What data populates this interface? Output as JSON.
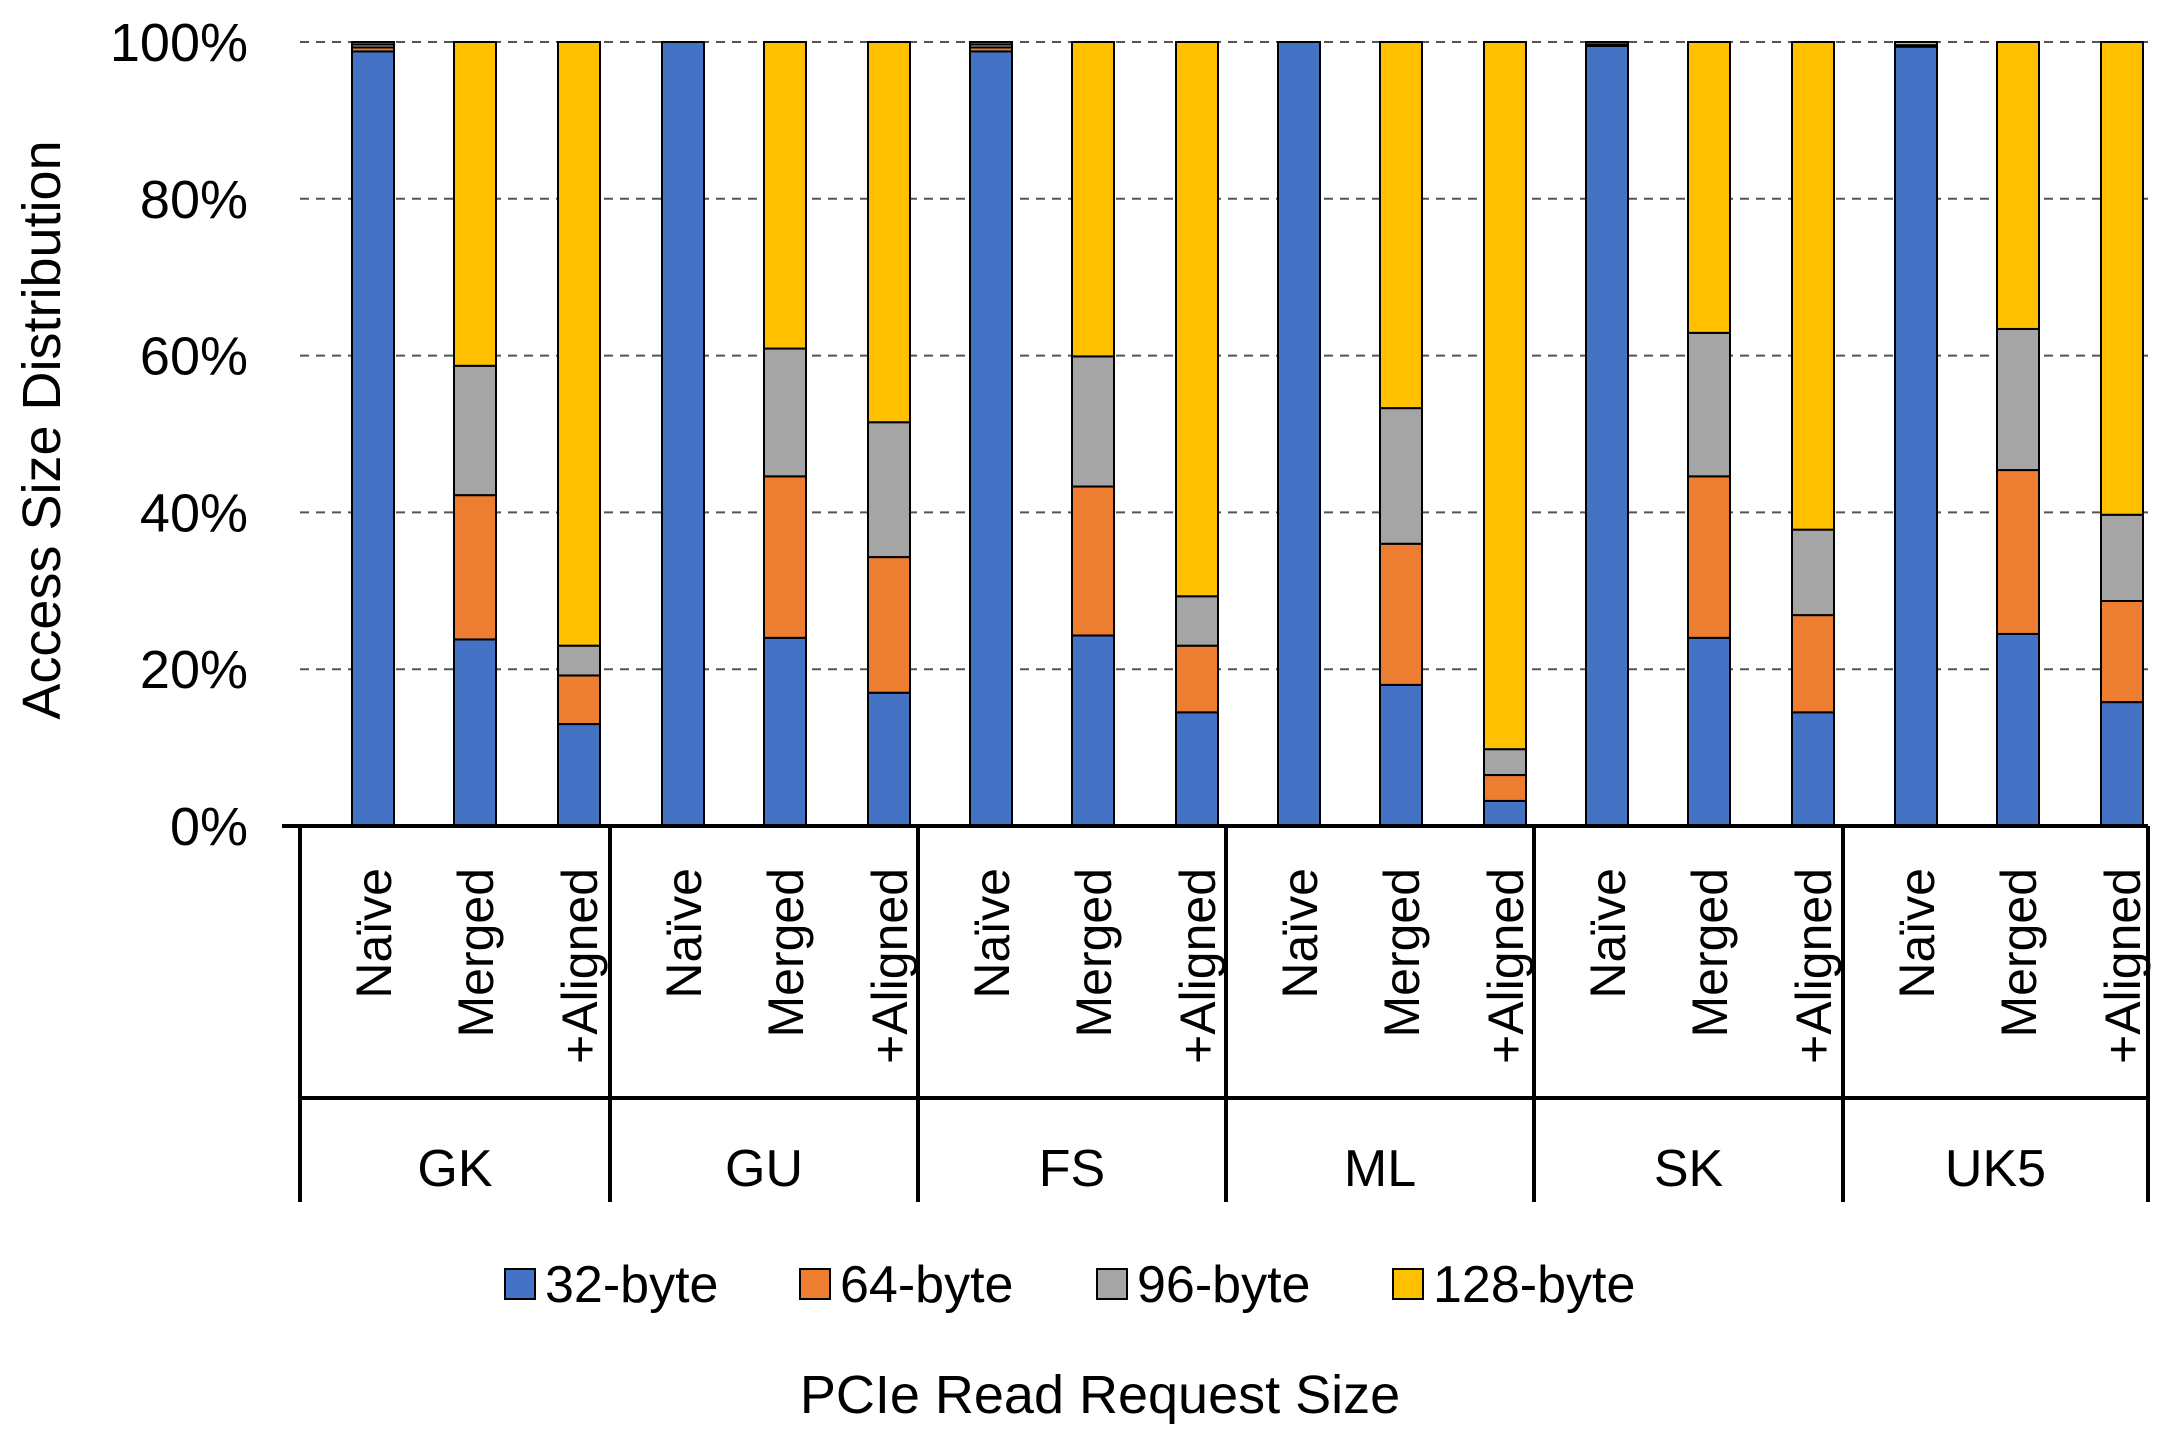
{
  "chart_data": {
    "type": "bar",
    "stacked": true,
    "title": "",
    "ylabel": "Access Size Distribution",
    "xlabel": "PCIe Read Request Size",
    "ylim": [
      0,
      100
    ],
    "yticks": [
      0,
      20,
      40,
      60,
      80,
      100
    ],
    "ytick_labels": [
      "0%",
      "20%",
      "40%",
      "60%",
      "80%",
      "100%"
    ],
    "grid": true,
    "legend_position": "bottom",
    "groups": [
      {
        "name": "GK",
        "categories": [
          "Naïve",
          "Merged",
          "+Aligned"
        ]
      },
      {
        "name": "GU",
        "categories": [
          "Naïve",
          "Merged",
          "+Aligned"
        ]
      },
      {
        "name": "FS",
        "categories": [
          "Naïve",
          "Merged",
          "+Aligned"
        ]
      },
      {
        "name": "ML",
        "categories": [
          "Naïve",
          "Merged",
          "+Aligned"
        ]
      },
      {
        "name": "SK",
        "categories": [
          "Naïve",
          "Merged",
          "+Aligned"
        ]
      },
      {
        "name": "UK5",
        "categories": [
          "Naïve",
          "Merged",
          "+Aligned"
        ]
      }
    ],
    "series": [
      {
        "name": "32-byte",
        "color": "#4472C4",
        "values": [
          98.8,
          23.8,
          13.0,
          100.0,
          24.0,
          17.0,
          98.8,
          24.3,
          14.5,
          100.0,
          18.0,
          3.2,
          99.5,
          24.0,
          14.5,
          99.4,
          24.5,
          15.8
        ]
      },
      {
        "name": "64-byte",
        "color": "#ED7D31",
        "values": [
          0.5,
          18.4,
          6.2,
          0.0,
          20.6,
          17.3,
          0.5,
          19.0,
          8.5,
          0.0,
          18.0,
          3.3,
          0.1,
          20.6,
          12.4,
          0.1,
          20.9,
          12.9
        ]
      },
      {
        "name": "96-byte",
        "color": "#A5A5A5",
        "values": [
          0.4,
          16.5,
          3.8,
          0.0,
          16.3,
          17.2,
          0.4,
          16.6,
          6.3,
          0.0,
          17.3,
          3.3,
          0.1,
          18.3,
          10.9,
          0.1,
          18.0,
          11.0
        ]
      },
      {
        "name": "128-byte",
        "color": "#FFC000",
        "values": [
          0.3,
          41.3,
          77.0,
          0.0,
          39.1,
          48.5,
          0.3,
          40.1,
          70.7,
          0.0,
          46.7,
          90.2,
          0.3,
          37.1,
          62.2,
          0.4,
          36.6,
          60.3
        ]
      }
    ]
  }
}
